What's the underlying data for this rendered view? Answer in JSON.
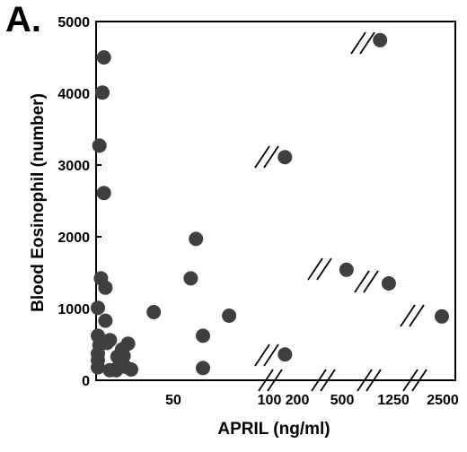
{
  "panel_label": "A.",
  "chart_data": {
    "type": "scatter",
    "xlabel": "APRIL (ng/ml)",
    "ylabel": "Blood Eosinophil (number)",
    "ylim": [
      0,
      5000
    ],
    "yticks": [
      "0",
      "1000",
      "2000",
      "3000",
      "4000",
      "5000"
    ],
    "xticks": [
      "50",
      "100",
      "200",
      "500",
      "1250",
      "2500"
    ],
    "x_axis_note": "broken axis with segment breaks",
    "grid": false,
    "legend": "none",
    "marker_color": "#3f3f3f",
    "points": [
      {
        "x": 1,
        "y": 3270
      },
      {
        "x": 4,
        "y": 4500
      },
      {
        "x": 3,
        "y": 4010
      },
      {
        "x": 4,
        "y": 2610
      },
      {
        "x": 2,
        "y": 1420
      },
      {
        "x": 5,
        "y": 1290
      },
      {
        "x": 0,
        "y": 1010
      },
      {
        "x": 5,
        "y": 830
      },
      {
        "x": 0,
        "y": 620
      },
      {
        "x": 1,
        "y": 490
      },
      {
        "x": 0,
        "y": 370
      },
      {
        "x": 0,
        "y": 280
      },
      {
        "x": 0,
        "y": 180
      },
      {
        "x": 6,
        "y": 520
      },
      {
        "x": 8,
        "y": 560
      },
      {
        "x": 8,
        "y": 140
      },
      {
        "x": 12,
        "y": 140
      },
      {
        "x": 13,
        "y": 330
      },
      {
        "x": 13,
        "y": 170
      },
      {
        "x": 15,
        "y": 290
      },
      {
        "x": 16,
        "y": 430
      },
      {
        "x": 17,
        "y": 340
      },
      {
        "x": 18,
        "y": 190
      },
      {
        "x": 20,
        "y": 510
      },
      {
        "x": 22,
        "y": 150
      },
      {
        "x": 37,
        "y": 950
      },
      {
        "x": 60,
        "y": 1420
      },
      {
        "x": 63,
        "y": 1970
      },
      {
        "x": 67,
        "y": 620
      },
      {
        "x": 67,
        "y": 170
      },
      {
        "x": 82,
        "y": 900
      },
      {
        "x": 280,
        "y": 3110
      },
      {
        "x": 280,
        "y": 360
      },
      {
        "x": 620,
        "y": 1540
      },
      {
        "x": 1080,
        "y": 4740
      },
      {
        "x": 1200,
        "y": 1350
      },
      {
        "x": 2500,
        "y": 890
      }
    ]
  }
}
